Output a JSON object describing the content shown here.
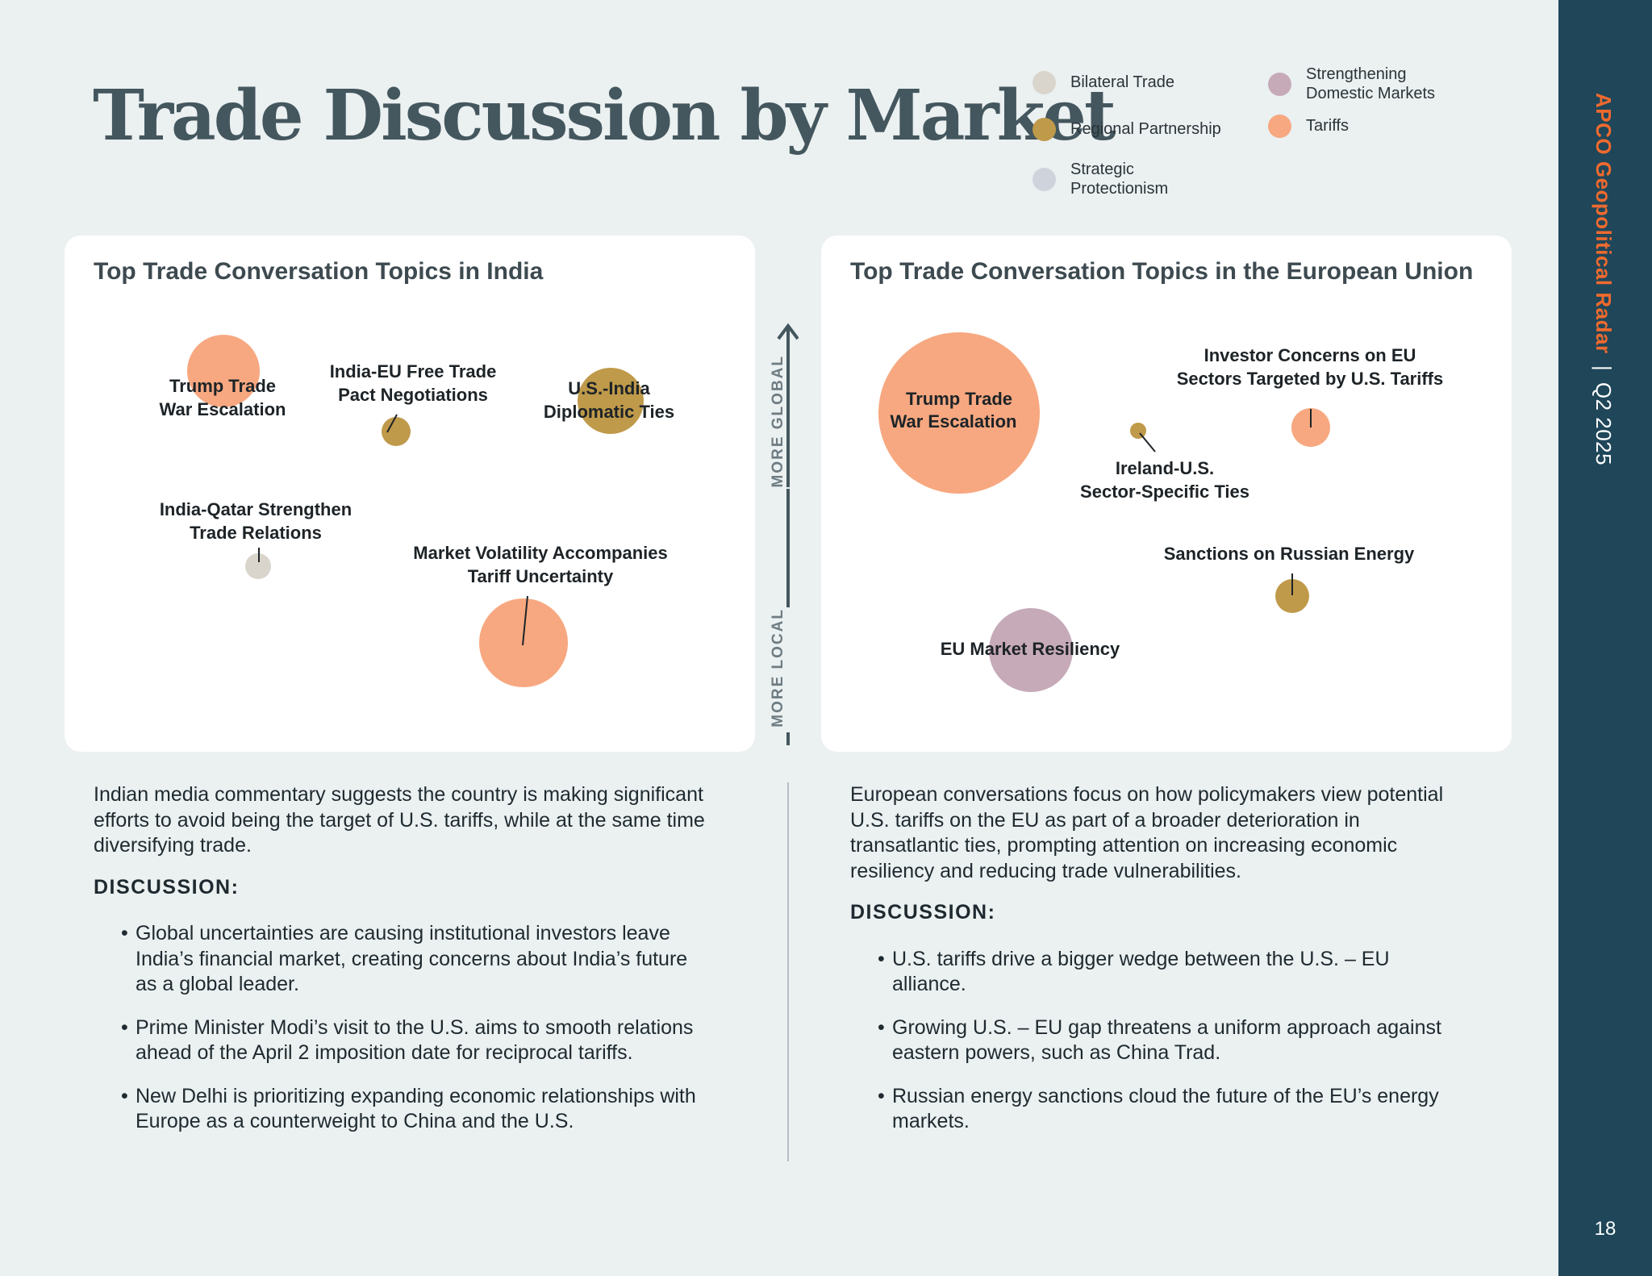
{
  "title": "Trade Discussion by Market",
  "sidebar": {
    "brand": "APCO Geopolitical Radar",
    "separator": "|",
    "period": "Q2 2025",
    "page_number": "18"
  },
  "legend": [
    {
      "label": "Bilateral Trade",
      "color": "#d9d5cc"
    },
    {
      "label": "Regional Partnership",
      "color": "#bf9a4a"
    },
    {
      "label": "Strategic\nProtectionism",
      "color": "#cfd3dc"
    },
    {
      "label": "Strengthening\nDomestic Markets",
      "color": "#c6aab8"
    },
    {
      "label": "Tariffs",
      "color": "#f7a880"
    }
  ],
  "axis": {
    "top_label": "MORE GLOBAL",
    "bottom_label": "MORE LOCAL"
  },
  "colors": {
    "Tariffs": "#f7a880",
    "Regional Partnership": "#bf9a4a",
    "Bilateral Trade": "#d9d5cc",
    "Strengthening Domestic Markets": "#c6aab8",
    "Strategic Protectionism": "#cfd3dc"
  },
  "chart_data": [
    {
      "type": "bubble",
      "title": "Top Trade Conversation Topics in India",
      "points": [
        {
          "label": [
            "Trump Trade",
            "War Escalation"
          ],
          "category": "Tariffs"
        },
        {
          "label": [
            "India-EU Free Trade",
            "Pact Negotiations"
          ],
          "category": "Regional Partnership"
        },
        {
          "label": [
            "U.S.-India",
            "Diplomatic Ties"
          ],
          "category": "Regional Partnership"
        },
        {
          "label": [
            "India-Qatar Strengthen",
            "Trade Relations"
          ],
          "category": "Bilateral Trade"
        },
        {
          "label": [
            "Market Volatility Accompanies",
            "Tariff Uncertainty"
          ],
          "category": "Tariffs"
        }
      ]
    },
    {
      "type": "bubble",
      "title": "Top Trade Conversation Topics in the European Union",
      "points": [
        {
          "label": [
            "Trump Trade",
            "War Escalation"
          ],
          "category": "Tariffs"
        },
        {
          "label": [
            "Investor Concerns on EU",
            "Sectors Targeted by U.S. Tariffs"
          ],
          "category": "Tariffs"
        },
        {
          "label": [
            "Ireland-U.S.",
            "Sector-Specific Ties"
          ],
          "category": "Regional Partnership"
        },
        {
          "label": [
            "Sanctions on Russian Energy"
          ],
          "category": "Regional Partnership"
        },
        {
          "label": [
            "EU Market Resiliency"
          ],
          "category": "Strengthening Domestic Markets"
        }
      ]
    }
  ],
  "india": {
    "intro": "Indian media commentary suggests the country is making significant efforts to avoid being the target of U.S. tariffs, while at the same time diversifying trade.",
    "discussion_heading": "DISCUSSION:",
    "bullets": [
      "Global uncertainties are causing institutional investors leave India’s financial market, creating concerns about India’s future as a global leader.",
      "Prime Minister Modi’s visit to the U.S. aims to smooth relations ahead of the April 2 imposition date for reciprocal tariffs.",
      "New Delhi is prioritizing expanding economic relationships with Europe as a counterweight to China and the U.S."
    ]
  },
  "eu": {
    "intro": "European conversations focus on how policymakers view potential U.S. tariffs on the EU as part of a broader deterioration in transatlantic ties, prompting attention on increasing economic resiliency and reducing trade vulnerabilities.",
    "discussion_heading": "DISCUSSION:",
    "bullets": [
      "U.S. tariffs drive a bigger wedge between the U.S. – EU alliance.",
      "Growing U.S. – EU gap threatens a uniform approach against eastern powers, such as China Trad.",
      "Russian energy sanctions cloud the future of the EU’s energy markets."
    ]
  }
}
